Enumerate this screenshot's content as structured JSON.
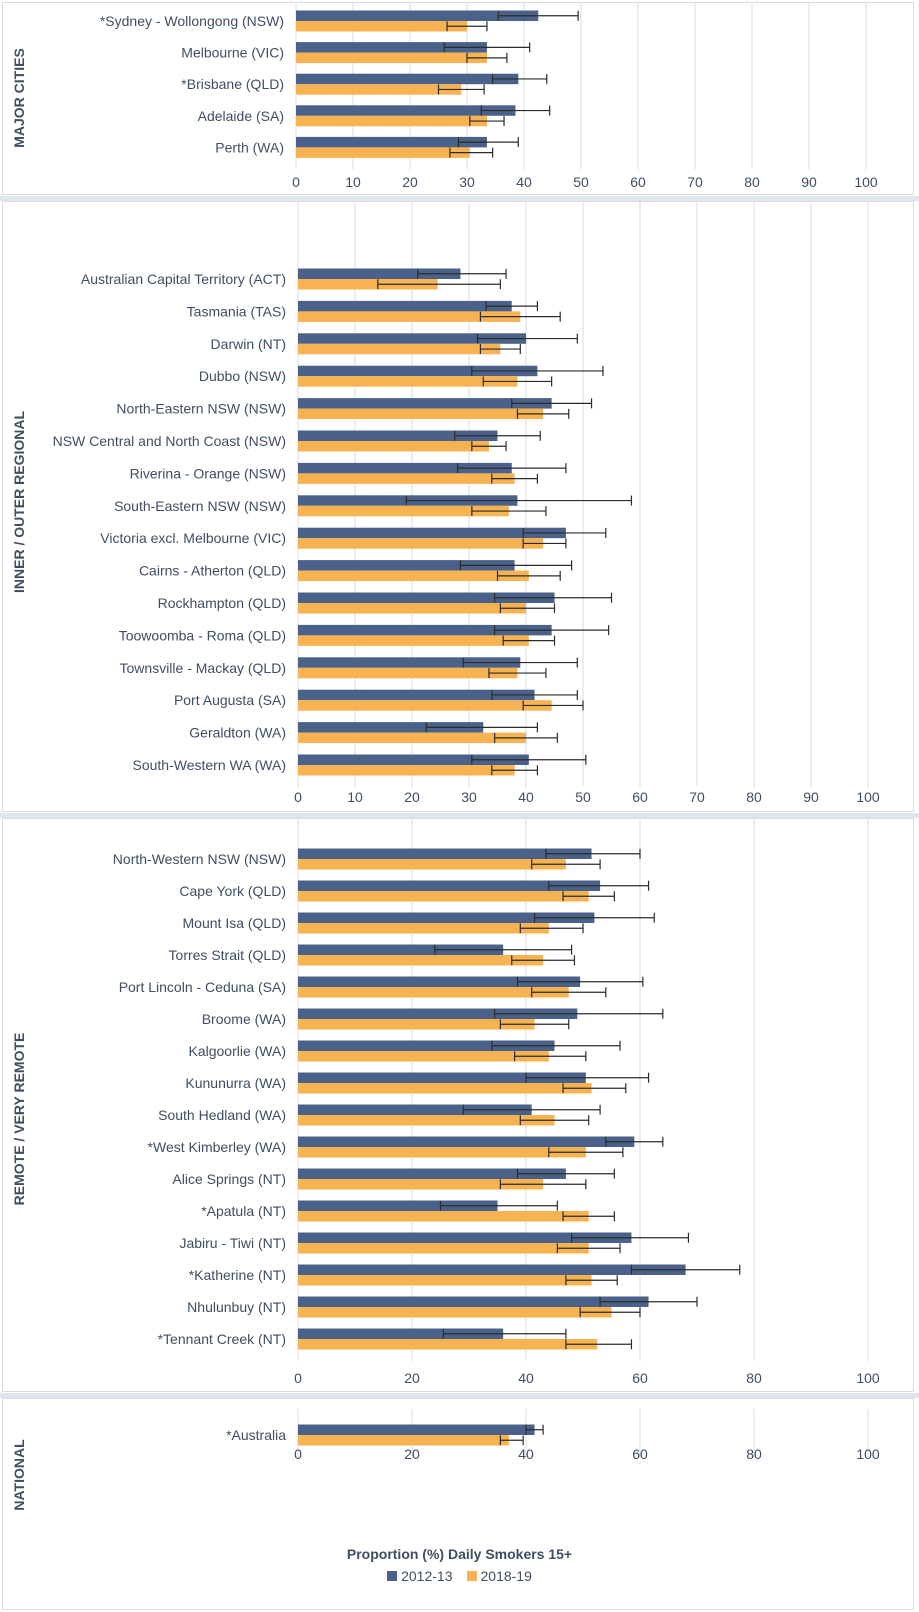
{
  "colors": {
    "s2012": "#4a6289",
    "s2018": "#f7b352",
    "text": "#3f4e63",
    "grid": "#d6dbe6",
    "err": "#2b2b2b"
  },
  "x_axis_title": "Proportion (%) Daily Smokers 15+",
  "legend": [
    {
      "name": "2012-13",
      "color": "#4a6289"
    },
    {
      "name": "2018-19",
      "color": "#f7b352"
    }
  ],
  "chart_data": [
    {
      "type": "bar",
      "panel_label": "MAJOR CITIES",
      "xlim": [
        0,
        100
      ],
      "ticks": [
        "0",
        "10",
        "20",
        "30",
        "40",
        "50",
        "60",
        "70",
        "80",
        "90",
        "100"
      ],
      "categories": [
        "*Sydney - Wollongong (NSW)",
        "Melbourne (VIC)",
        "*Brisbane (QLD)",
        "Adelaide (SA)",
        "Perth (WA)"
      ],
      "series": [
        {
          "name": "2012-13",
          "values": [
            42.5,
            33.5,
            39,
            38.5,
            33.5
          ],
          "err_low": [
            35.5,
            26,
            34.5,
            32.5,
            28.5
          ],
          "err_high": [
            49.5,
            41,
            44,
            44.5,
            39
          ]
        },
        {
          "name": "2018-19",
          "values": [
            30,
            33.5,
            29,
            33.5,
            30.5
          ],
          "err_low": [
            26.5,
            30,
            25,
            30.5,
            27
          ],
          "err_high": [
            33.5,
            37,
            33,
            36.5,
            34.5
          ]
        }
      ]
    },
    {
      "type": "bar",
      "panel_label": "INNER / OUTER REGIONAL",
      "xlim": [
        0,
        100
      ],
      "ticks": [
        "0",
        "10",
        "20",
        "30",
        "40",
        "50",
        "60",
        "70",
        "80",
        "90",
        "100"
      ],
      "categories": [
        "Australian Capital Territory (ACT)",
        "Tasmania (TAS)",
        "Darwin (NT)",
        "Dubbo (NSW)",
        "North-Eastern NSW (NSW)",
        "NSW Central and North Coast (NSW)",
        "Riverina - Orange (NSW)",
        "South-Eastern NSW (NSW)",
        "Victoria excl. Melbourne (VIC)",
        "Cairns - Atherton (QLD)",
        "Rockhampton (QLD)",
        "Toowoomba - Roma (QLD)",
        "Townsville - Mackay (QLD)",
        "Port Augusta (SA)",
        "Geraldton (WA)",
        "South-Western WA (WA)"
      ],
      "series": [
        {
          "name": "2012-13",
          "values": [
            28.5,
            37.5,
            40,
            42,
            44.5,
            35,
            37.5,
            38.5,
            47,
            38,
            45,
            44.5,
            39,
            41.5,
            32.5,
            40.5
          ],
          "err_low": [
            21,
            33,
            31.5,
            30.5,
            37.5,
            27.5,
            28,
            19,
            39.5,
            28.5,
            34.5,
            34.5,
            29,
            34,
            22.5,
            30.5
          ],
          "err_high": [
            36.5,
            42,
            49,
            53.5,
            51.5,
            42.5,
            47,
            58.5,
            54,
            48,
            55,
            54.5,
            49,
            49,
            42,
            50.5
          ]
        },
        {
          "name": "2018-19",
          "values": [
            24.5,
            39,
            35.5,
            38.5,
            43,
            33.5,
            38,
            37,
            43,
            40.5,
            40,
            40.5,
            38.5,
            44.5,
            40,
            38
          ],
          "err_low": [
            14,
            32,
            32,
            32.5,
            38.5,
            30.5,
            34,
            30.5,
            39.5,
            35,
            35.5,
            36,
            33.5,
            39.5,
            34.5,
            34
          ],
          "err_high": [
            35.5,
            46,
            39,
            44.5,
            47.5,
            36.5,
            42,
            43.5,
            47,
            46,
            45,
            45,
            43.5,
            50,
            45.5,
            42
          ]
        }
      ]
    },
    {
      "type": "bar",
      "panel_label": "REMOTE / VERY REMOTE",
      "xlim": [
        0,
        100
      ],
      "ticks": [
        "0",
        "20",
        "40",
        "60",
        "80",
        "100"
      ],
      "categories": [
        "North-Western NSW (NSW)",
        "Cape York (QLD)",
        "Mount Isa (QLD)",
        "Torres Strait (QLD)",
        "Port Lincoln - Ceduna (SA)",
        "Broome (WA)",
        "Kalgoorlie (WA)",
        "Kununurra (WA)",
        "South Hedland (WA)",
        "*West Kimberley (WA)",
        "Alice Springs (NT)",
        "*Apatula (NT)",
        "Jabiru - Tiwi (NT)",
        "*Katherine (NT)",
        "Nhulunbuy (NT)",
        "*Tennant Creek (NT)"
      ],
      "series": [
        {
          "name": "2012-13",
          "values": [
            51.5,
            53,
            52,
            36,
            49.5,
            49,
            45,
            50.5,
            41,
            59,
            47,
            35,
            58.5,
            68,
            61.5,
            36
          ],
          "err_low": [
            43.5,
            44,
            41.5,
            24,
            38.5,
            34.5,
            34,
            40,
            29,
            54,
            38.5,
            25,
            48,
            58.5,
            53,
            25.5
          ],
          "err_high": [
            60,
            61.5,
            62.5,
            48,
            60.5,
            64,
            56.5,
            61.5,
            53,
            64,
            55.5,
            45.5,
            68.5,
            77.5,
            70,
            47
          ]
        },
        {
          "name": "2018-19",
          "values": [
            47,
            51,
            44,
            43,
            47.5,
            41.5,
            44,
            51.5,
            45,
            50.5,
            43,
            51,
            51,
            51.5,
            55,
            52.5
          ],
          "err_low": [
            41,
            46.5,
            39,
            37.5,
            41,
            35.5,
            38,
            46.5,
            39,
            44,
            35.5,
            46.5,
            45.5,
            47,
            49.5,
            47
          ],
          "err_high": [
            53,
            55.5,
            50,
            48.5,
            54,
            47.5,
            50.5,
            57.5,
            51,
            57,
            50.5,
            55.5,
            56.5,
            56,
            60,
            58.5
          ]
        }
      ]
    },
    {
      "type": "bar",
      "panel_label": "NATIONAL",
      "xlim": [
        0,
        100
      ],
      "ticks": [
        "0",
        "20",
        "40",
        "60",
        "80",
        "100"
      ],
      "categories": [
        "*Australia"
      ],
      "series": [
        {
          "name": "2012-13",
          "values": [
            41.5
          ],
          "err_low": [
            40
          ],
          "err_high": [
            43
          ]
        },
        {
          "name": "2018-19",
          "values": [
            37
          ],
          "err_low": [
            35.5
          ],
          "err_high": [
            39.5
          ]
        }
      ]
    }
  ]
}
